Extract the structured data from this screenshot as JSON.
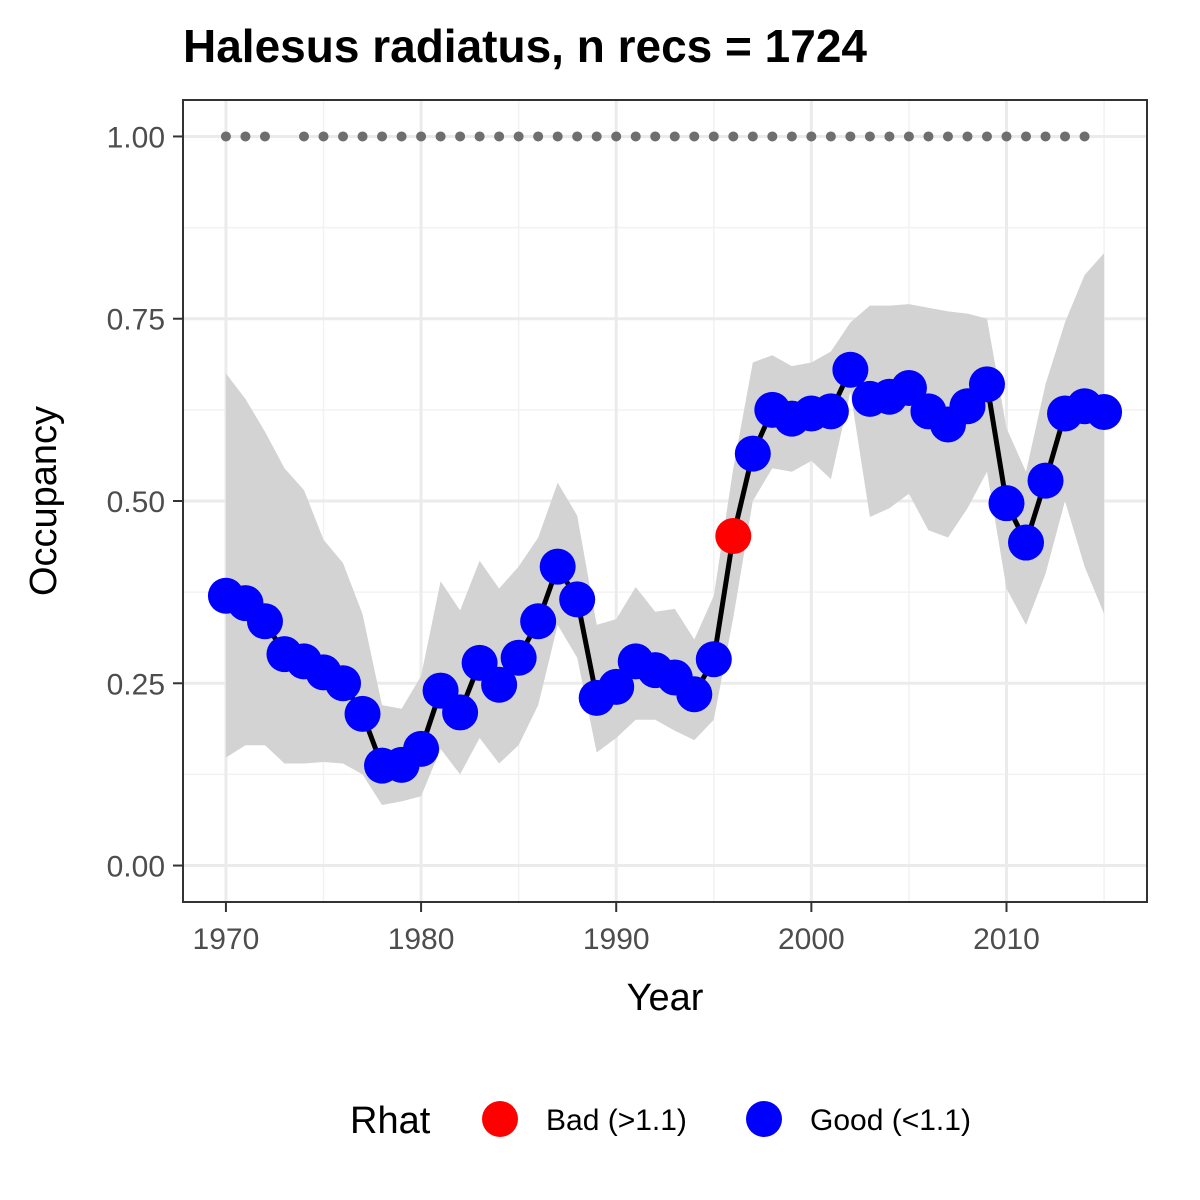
{
  "chart_data": {
    "type": "line",
    "title": "Halesus radiatus, n recs = 1724",
    "xlabel": "Year",
    "ylabel": "Occupancy",
    "xlim": [
      1967.8,
      2017.2
    ],
    "ylim": [
      -0.05,
      1.05
    ],
    "x_ticks": [
      1970,
      1980,
      1990,
      2000,
      2010
    ],
    "x_minor_ticks": [
      1975,
      1985,
      1995,
      2005,
      2015
    ],
    "y_ticks": [
      0.0,
      0.25,
      0.5,
      0.75,
      1.0
    ],
    "y_tick_labels": [
      "0.00",
      "0.25",
      "0.50",
      "0.75",
      "1.00"
    ],
    "y_minor_ticks": [
      0.125,
      0.375,
      0.625,
      0.875
    ],
    "grid": true,
    "legend": {
      "title": "Rhat",
      "position": "bottom",
      "items": [
        {
          "label": "Bad (>1.1)",
          "color": "#ff0000"
        },
        {
          "label": "Good (<1.1)",
          "color": "#0000ff"
        }
      ]
    },
    "colors": {
      "good": "#0000ff",
      "bad": "#ff0000",
      "line": "#000000",
      "ribbon": "#d3d3d3",
      "data_years": "#6e6e6e"
    },
    "series": [
      {
        "x": [
          1970,
          1971,
          1972,
          1973,
          1974,
          1975,
          1976,
          1977,
          1978,
          1979,
          1980,
          1981,
          1982,
          1983,
          1984,
          1985,
          1986,
          1987,
          1988,
          1989,
          1990,
          1991,
          1992,
          1993,
          1994,
          1995,
          1996,
          1997,
          1998,
          1999,
          2000,
          2001,
          2002,
          2003,
          2004,
          2005,
          2006,
          2007,
          2008,
          2009,
          2010,
          2011,
          2012,
          2013,
          2014,
          2015
        ],
        "values": [
          0.37,
          0.36,
          0.335,
          0.29,
          0.28,
          0.265,
          0.25,
          0.208,
          0.137,
          0.138,
          0.16,
          0.24,
          0.21,
          0.278,
          0.248,
          0.285,
          0.335,
          0.41,
          0.365,
          0.23,
          0.245,
          0.28,
          0.268,
          0.258,
          0.235,
          0.283,
          0.452,
          0.565,
          0.625,
          0.613,
          0.62,
          0.623,
          0.68,
          0.64,
          0.643,
          0.655,
          0.623,
          0.605,
          0.63,
          0.66,
          0.497,
          0.443,
          0.528,
          0.62,
          0.63,
          0.622
        ],
        "lower": [
          0.148,
          0.165,
          0.165,
          0.14,
          0.14,
          0.142,
          0.14,
          0.125,
          0.083,
          0.088,
          0.095,
          0.16,
          0.125,
          0.175,
          0.14,
          0.165,
          0.22,
          0.33,
          0.285,
          0.155,
          0.175,
          0.2,
          0.2,
          0.185,
          0.172,
          0.2,
          0.34,
          0.5,
          0.545,
          0.54,
          0.555,
          0.53,
          0.65,
          0.478,
          0.49,
          0.51,
          0.46,
          0.45,
          0.49,
          0.54,
          0.38,
          0.33,
          0.4,
          0.5,
          0.41,
          0.345
        ],
        "upper": [
          0.675,
          0.64,
          0.595,
          0.545,
          0.515,
          0.447,
          0.415,
          0.345,
          0.22,
          0.215,
          0.26,
          0.39,
          0.35,
          0.418,
          0.38,
          0.41,
          0.45,
          0.525,
          0.48,
          0.33,
          0.338,
          0.382,
          0.348,
          0.352,
          0.31,
          0.37,
          0.545,
          0.69,
          0.7,
          0.685,
          0.69,
          0.705,
          0.745,
          0.768,
          0.768,
          0.77,
          0.765,
          0.76,
          0.757,
          0.75,
          0.6,
          0.54,
          0.66,
          0.745,
          0.81,
          0.84
        ],
        "rhat": [
          "good",
          "good",
          "good",
          "good",
          "good",
          "good",
          "good",
          "good",
          "good",
          "good",
          "good",
          "good",
          "good",
          "good",
          "good",
          "good",
          "good",
          "good",
          "good",
          "good",
          "good",
          "good",
          "good",
          "good",
          "good",
          "good",
          "bad",
          "good",
          "good",
          "good",
          "good",
          "good",
          "good",
          "good",
          "good",
          "good",
          "good",
          "good",
          "good",
          "good",
          "good",
          "good",
          "good",
          "good",
          "good",
          "good"
        ]
      }
    ],
    "data_years": {
      "y": 1.0,
      "x": [
        1970,
        1971,
        1972,
        1974,
        1975,
        1976,
        1977,
        1978,
        1979,
        1980,
        1981,
        1982,
        1983,
        1984,
        1985,
        1986,
        1987,
        1988,
        1989,
        1990,
        1991,
        1992,
        1993,
        1994,
        1995,
        1996,
        1997,
        1998,
        1999,
        2000,
        2001,
        2002,
        2003,
        2004,
        2005,
        2006,
        2007,
        2008,
        2009,
        2010,
        2011,
        2012,
        2013,
        2014
      ]
    }
  }
}
